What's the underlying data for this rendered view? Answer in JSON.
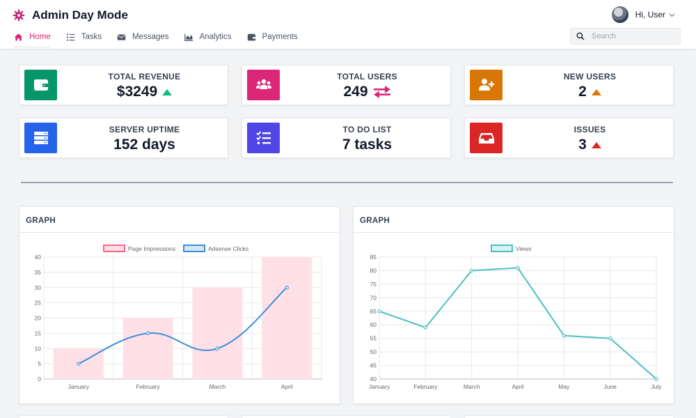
{
  "app": {
    "title": "Admin Day Mode"
  },
  "user": {
    "greeting": "Hi, User"
  },
  "nav": {
    "items": [
      {
        "label": "Home",
        "icon": "home-icon",
        "active": true
      },
      {
        "label": "Tasks",
        "icon": "tasks-icon",
        "active": false
      },
      {
        "label": "Messages",
        "icon": "envelope-icon",
        "active": false
      },
      {
        "label": "Analytics",
        "icon": "chart-icon",
        "active": false
      },
      {
        "label": "Payments",
        "icon": "wallet-icon",
        "active": false
      }
    ]
  },
  "search": {
    "placeholder": "Search",
    "value": ""
  },
  "stats": [
    {
      "label": "TOTAL REVENUE",
      "value": "$3249",
      "icon": "wallet-icon",
      "color": "#059669",
      "indicator": "up",
      "indicator_color": "#10b981"
    },
    {
      "label": "TOTAL USERS",
      "value": "249",
      "icon": "users-icon",
      "color": "#db2777",
      "indicator": "exchange",
      "indicator_color": "#db2777"
    },
    {
      "label": "NEW USERS",
      "value": "2",
      "icon": "user-plus-icon",
      "color": "#d97706",
      "indicator": "up",
      "indicator_color": "#d97706"
    },
    {
      "label": "SERVER UPTIME",
      "value": "152 days",
      "icon": "server-icon",
      "color": "#2563eb",
      "indicator": "none",
      "indicator_color": ""
    },
    {
      "label": "TO DO LIST",
      "value": "7 tasks",
      "icon": "checklist-icon",
      "color": "#4f46e5",
      "indicator": "none",
      "indicator_color": ""
    },
    {
      "label": "ISSUES",
      "value": "3",
      "icon": "inbox-icon",
      "color": "#dc2626",
      "indicator": "up",
      "indicator_color": "#dc2626"
    }
  ],
  "graphs": [
    {
      "title": "GRAPH"
    },
    {
      "title": "GRAPH"
    }
  ],
  "chart_data": [
    {
      "type": "bar",
      "categories": [
        "January",
        "February",
        "March",
        "April"
      ],
      "series": [
        {
          "name": "Page Impressions",
          "type": "bar",
          "values": [
            10,
            20,
            30,
            40
          ],
          "color": "#ff6384",
          "fill": "#ffe0e6"
        },
        {
          "name": "Adsense Clicks",
          "type": "line",
          "values": [
            5,
            15,
            10,
            30
          ],
          "color": "#3b8fd9",
          "fill": "#d4e7f7"
        }
      ],
      "ylim": [
        0,
        40
      ],
      "yticks": [
        0,
        5,
        10,
        15,
        20,
        25,
        30,
        35,
        40
      ],
      "legend": "top",
      "grid": true
    },
    {
      "type": "line",
      "categories": [
        "January",
        "February",
        "March",
        "April",
        "May",
        "June",
        "July"
      ],
      "series": [
        {
          "name": "Views",
          "values": [
            65,
            59,
            80,
            81,
            56,
            55,
            40
          ],
          "color": "#4bc0c0",
          "fill": "#dbf2f2"
        }
      ],
      "ylim": [
        40,
        85
      ],
      "yticks": [
        40,
        45,
        50,
        55,
        60,
        65,
        70,
        75,
        80,
        85
      ],
      "legend": "top",
      "grid": true
    }
  ]
}
